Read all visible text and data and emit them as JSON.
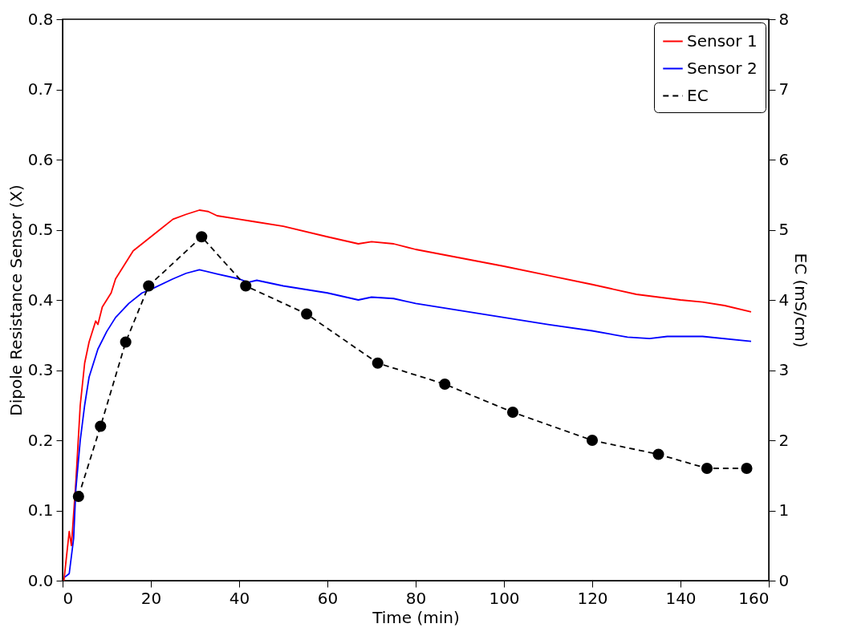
{
  "chart_data": {
    "type": "line",
    "xlabel": "Time (min)",
    "ylabel": "Dipole Resistance Sensor (X)",
    "y2label": "EC (mS/cm)",
    "xlim": [
      0,
      160
    ],
    "xticks": [
      0,
      20,
      40,
      60,
      80,
      100,
      120,
      140,
      160
    ],
    "ylim": [
      0,
      0.8
    ],
    "yticks": [
      {
        "value": 0,
        "label": "0.0"
      },
      0.1,
      0.2,
      0.3,
      0.4,
      0.5,
      0.6,
      0.7,
      0.8
    ],
    "y2lim": [
      0,
      8
    ],
    "y2ticks": [
      0,
      1,
      2,
      3,
      4,
      5,
      6,
      7,
      8
    ],
    "grid": false,
    "legend": "top right",
    "series": [
      {
        "name": "Sensor 1",
        "color": "#ff0000",
        "line_style": "solid",
        "marker": "none",
        "x": [
          0.3,
          1.5,
          2,
          3,
          4,
          5,
          6,
          7,
          7.5,
          8,
          9,
          11,
          12,
          14,
          16,
          18,
          20,
          22,
          25,
          28,
          31,
          33,
          35,
          40,
          43,
          50,
          60,
          67,
          70,
          75,
          80,
          90,
          100,
          110,
          120,
          130,
          140,
          145,
          150,
          156
        ],
        "values": [
          0.0,
          0.07,
          0.05,
          0.14,
          0.25,
          0.31,
          0.34,
          0.36,
          0.37,
          0.365,
          0.39,
          0.41,
          0.43,
          0.45,
          0.47,
          0.48,
          0.49,
          0.5,
          0.515,
          0.522,
          0.528,
          0.526,
          0.52,
          0.515,
          0.512,
          0.505,
          0.49,
          0.48,
          0.483,
          0.48,
          0.472,
          0.46,
          0.448,
          0.435,
          0.422,
          0.408,
          0.4,
          0.397,
          0.392,
          0.383
        ]
      },
      {
        "name": "Sensor 2",
        "color": "#0000ff",
        "line_style": "solid",
        "marker": "none",
        "x": [
          0.5,
          1.5,
          2.5,
          3,
          4,
          5,
          6,
          8,
          10,
          12,
          15,
          18,
          20,
          25,
          28,
          31,
          35,
          40,
          42,
          44,
          50,
          60,
          67,
          70,
          75,
          80,
          90,
          100,
          110,
          120,
          128,
          133,
          137,
          145,
          156
        ],
        "values": [
          0.005,
          0.01,
          0.06,
          0.13,
          0.2,
          0.25,
          0.29,
          0.33,
          0.355,
          0.375,
          0.395,
          0.41,
          0.415,
          0.43,
          0.438,
          0.443,
          0.437,
          0.43,
          0.425,
          0.428,
          0.42,
          0.41,
          0.4,
          0.404,
          0.402,
          0.395,
          0.385,
          0.375,
          0.365,
          0.356,
          0.347,
          0.345,
          0.348,
          0.348,
          0.341
        ]
      },
      {
        "name": "EC",
        "color": "#000000",
        "line_style": "dashed",
        "marker": "circle",
        "axis": "y2",
        "x": [
          3.6,
          8.6,
          14.3,
          19.5,
          31.5,
          41.5,
          55.3,
          71.4,
          86.6,
          102,
          120,
          135,
          146,
          155
        ],
        "values": [
          1.2,
          2.2,
          3.4,
          4.2,
          4.9,
          4.2,
          3.8,
          3.1,
          2.8,
          2.4,
          2.0,
          1.8,
          1.6,
          1.6
        ]
      }
    ]
  }
}
